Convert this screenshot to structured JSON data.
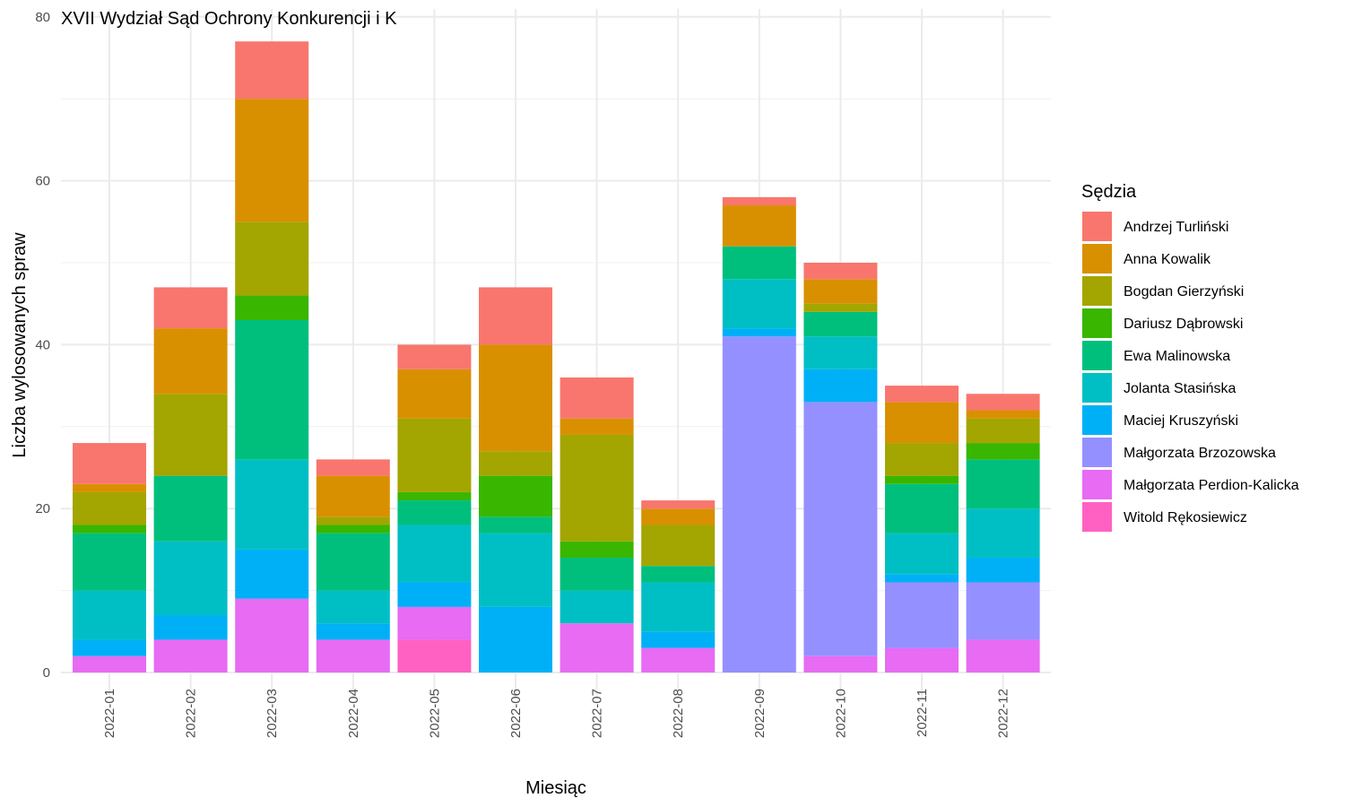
{
  "chart_data": {
    "type": "bar",
    "stacked": true,
    "title": "XVII Wydział Sąd Ochrony Konkurencji i K",
    "xlabel": "Miesiąc",
    "ylabel": "Liczba wylosowanych spraw",
    "ylim": [
      0,
      80
    ],
    "yticks": [
      0,
      20,
      40,
      60,
      80
    ],
    "grid": true,
    "legend_title": "Sędzia",
    "legend_position": "right",
    "categories": [
      "2022-01",
      "2022-02",
      "2022-03",
      "2022-04",
      "2022-05",
      "2022-06",
      "2022-07",
      "2022-08",
      "2022-09",
      "2022-10",
      "2022-11",
      "2022-12"
    ],
    "series": [
      {
        "name": "Witold Rękosiewicz",
        "color": "#FF61C3",
        "values": [
          0,
          0,
          0,
          0,
          4,
          0,
          0,
          0,
          0,
          0,
          0,
          0
        ]
      },
      {
        "name": "Małgorzata Perdion-Kalicka",
        "color": "#E76BF3",
        "values": [
          2,
          4,
          9,
          4,
          4,
          0,
          6,
          3,
          0,
          2,
          3,
          4
        ]
      },
      {
        "name": "Małgorzata Brzozowska",
        "color": "#9590FF",
        "values": [
          0,
          0,
          0,
          0,
          0,
          0,
          0,
          0,
          41,
          31,
          8,
          7
        ]
      },
      {
        "name": "Maciej Kruszyński",
        "color": "#00B0F6",
        "values": [
          2,
          3,
          6,
          2,
          3,
          8,
          0,
          2,
          1,
          4,
          1,
          3
        ]
      },
      {
        "name": "Jolanta Stasińska",
        "color": "#00BFC4",
        "values": [
          6,
          9,
          11,
          4,
          7,
          9,
          4,
          6,
          6,
          4,
          5,
          6
        ]
      },
      {
        "name": "Ewa Malinowska",
        "color": "#00BF7D",
        "values": [
          7,
          8,
          17,
          7,
          3,
          2,
          4,
          2,
          4,
          3,
          6,
          6
        ]
      },
      {
        "name": "Dariusz Dąbrowski",
        "color": "#39B600",
        "values": [
          1,
          0,
          3,
          1,
          1,
          5,
          2,
          0,
          0,
          0,
          1,
          2
        ]
      },
      {
        "name": "Bogdan Gierzyński",
        "color": "#A3A500",
        "values": [
          4,
          10,
          9,
          1,
          9,
          3,
          13,
          5,
          0,
          1,
          4,
          3
        ]
      },
      {
        "name": "Anna Kowalik",
        "color": "#D89000",
        "values": [
          1,
          8,
          15,
          5,
          6,
          13,
          2,
          2,
          5,
          3,
          5,
          1
        ]
      },
      {
        "name": "Andrzej Turliński",
        "color": "#F8766D",
        "values": [
          5,
          5,
          7,
          2,
          3,
          7,
          5,
          1,
          1,
          2,
          2,
          2
        ]
      }
    ],
    "legend_order": [
      "Andrzej Turliński",
      "Anna Kowalik",
      "Bogdan Gierzyński",
      "Dariusz Dąbrowski",
      "Ewa Malinowska",
      "Jolanta Stasińska",
      "Maciej Kruszyński",
      "Małgorzata Brzozowska",
      "Małgorzata Perdion-Kalicka",
      "Witold Rękosiewicz"
    ]
  }
}
